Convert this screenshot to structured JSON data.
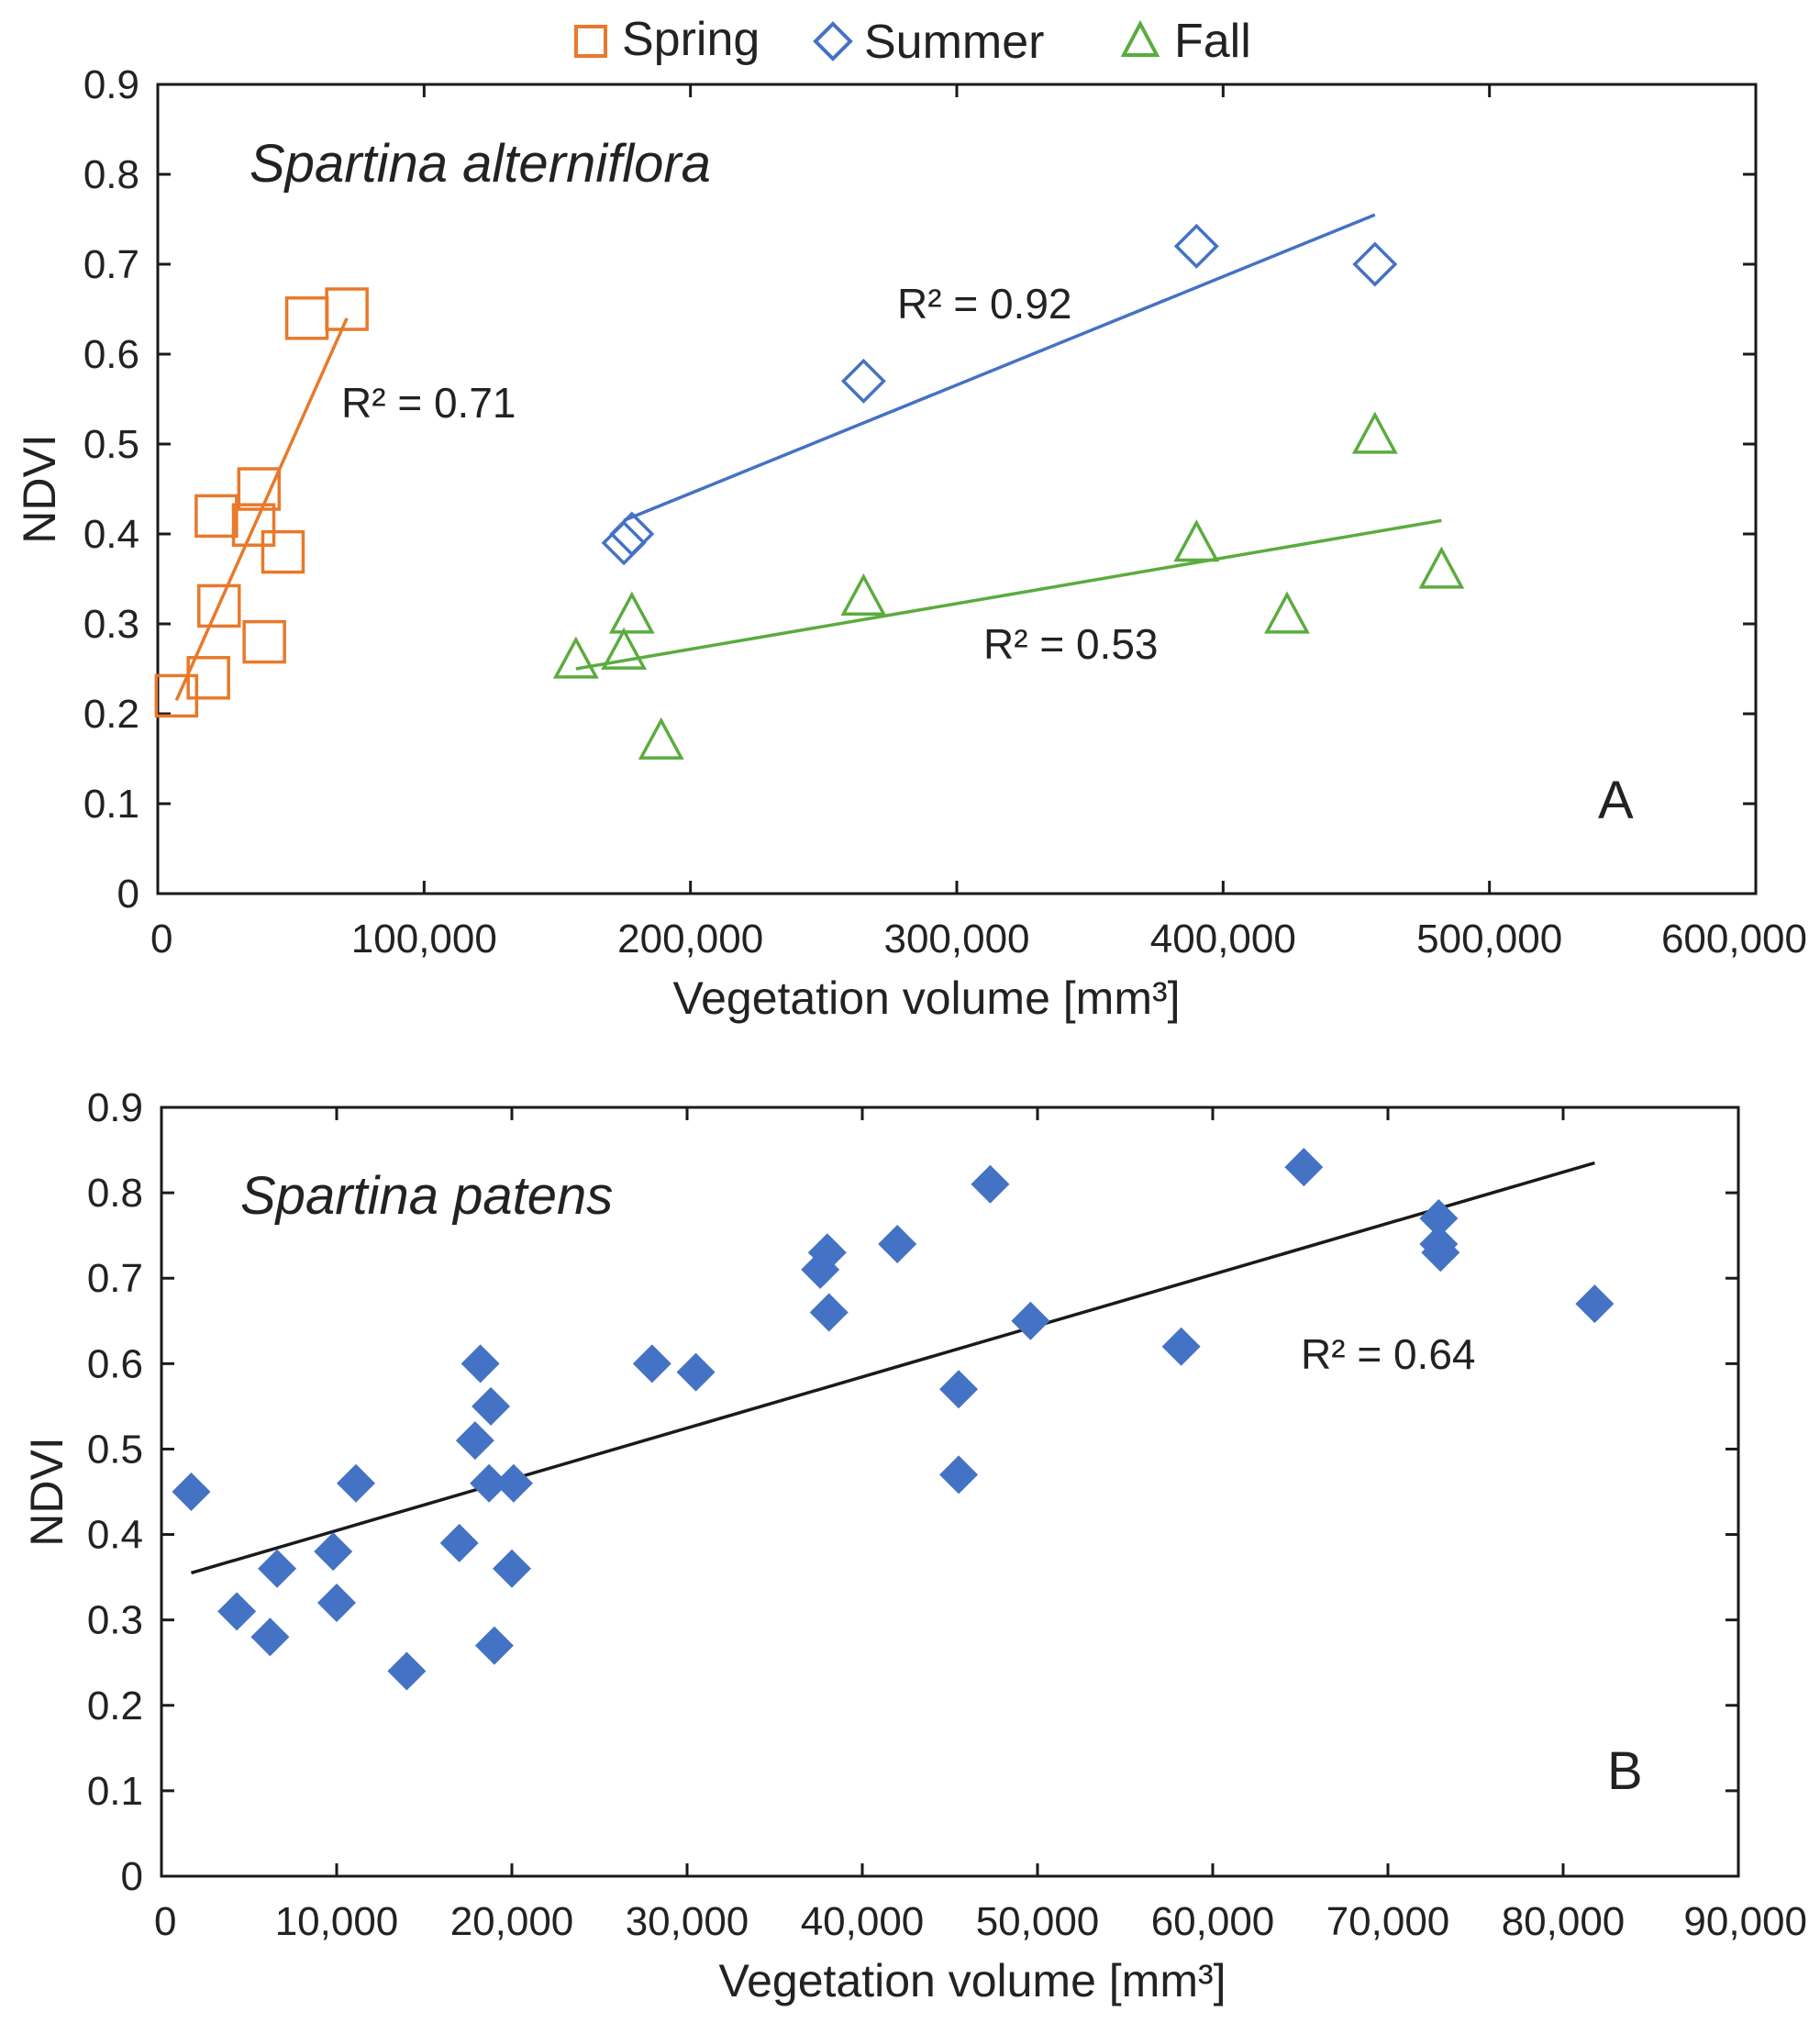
{
  "legend": {
    "items": [
      {
        "label": "Spring",
        "marker": "square",
        "color": "#e8792b"
      },
      {
        "label": "Summer",
        "marker": "diamond",
        "color": "#4472c4"
      },
      {
        "label": "Fall",
        "marker": "triangle",
        "color": "#5aac3e"
      }
    ]
  },
  "chart_data": [
    {
      "type": "scatter",
      "panel_label": "A",
      "title": "Spartina alterniflora",
      "xlabel": "Vegetation volume [mm³]",
      "ylabel": "NDVI",
      "xlim": [
        0,
        600000
      ],
      "ylim": [
        0,
        0.9
      ],
      "x_ticks": [
        0,
        100000,
        200000,
        300000,
        400000,
        500000,
        600000
      ],
      "x_tick_labels": [
        "0",
        "100,000",
        "200,000",
        "300,000",
        "400,000",
        "500,000",
        "600,000"
      ],
      "y_ticks": [
        0,
        0.1,
        0.2,
        0.3,
        0.4,
        0.5,
        0.6,
        0.7,
        0.8,
        0.9
      ],
      "y_tick_labels": [
        "0",
        "0.1",
        "0.2",
        "0.3",
        "0.4",
        "0.5",
        "0.6",
        "0.7",
        "0.8",
        "0.9"
      ],
      "legend": "top",
      "grid": false,
      "series": [
        {
          "name": "Spring",
          "marker": "square",
          "color": "#e8792b",
          "points": [
            [
              7000,
              0.22
            ],
            [
              19000,
              0.24
            ],
            [
              22000,
              0.42
            ],
            [
              23000,
              0.32
            ],
            [
              36000,
              0.41
            ],
            [
              38000,
              0.45
            ],
            [
              40000,
              0.28
            ],
            [
              47000,
              0.38
            ],
            [
              56000,
              0.64
            ],
            [
              71000,
              0.65
            ]
          ],
          "trendline": {
            "x": [
              7000,
              71000
            ],
            "y": [
              0.215,
              0.64
            ],
            "r2_label": "R² = 0.71"
          }
        },
        {
          "name": "Summer",
          "marker": "diamond",
          "color": "#4472c4",
          "points": [
            [
              175000,
              0.39
            ],
            [
              178000,
              0.4
            ],
            [
              265000,
              0.57
            ],
            [
              390000,
              0.72
            ],
            [
              457000,
              0.7
            ]
          ],
          "trendline": {
            "x": [
              175000,
              457000
            ],
            "y": [
              0.415,
              0.755
            ],
            "r2_label": "R² = 0.92"
          }
        },
        {
          "name": "Fall",
          "marker": "triangle",
          "color": "#5aac3e",
          "points": [
            [
              157000,
              0.26
            ],
            [
              175000,
              0.27
            ],
            [
              178000,
              0.31
            ],
            [
              189000,
              0.17
            ],
            [
              265000,
              0.33
            ],
            [
              390000,
              0.39
            ],
            [
              424000,
              0.31
            ],
            [
              457000,
              0.51
            ],
            [
              482000,
              0.36
            ]
          ],
          "trendline": {
            "x": [
              157000,
              482000
            ],
            "y": [
              0.25,
              0.415
            ],
            "r2_label": "R² = 0.53"
          }
        }
      ]
    },
    {
      "type": "scatter",
      "panel_label": "B",
      "title": "Spartina patens",
      "xlabel": "Vegetation volume [mm³]",
      "ylabel": "NDVI",
      "xlim": [
        0,
        90000
      ],
      "ylim": [
        0,
        0.9
      ],
      "x_ticks": [
        0,
        10000,
        20000,
        30000,
        40000,
        50000,
        60000,
        70000,
        80000,
        90000
      ],
      "x_tick_labels": [
        "0",
        "10,000",
        "20,000",
        "30,000",
        "40,000",
        "50,000",
        "60,000",
        "70,000",
        "80,000",
        "90,000"
      ],
      "y_ticks": [
        0,
        0.1,
        0.2,
        0.3,
        0.4,
        0.5,
        0.6,
        0.7,
        0.8,
        0.9
      ],
      "y_tick_labels": [
        "0",
        "0.1",
        "0.2",
        "0.3",
        "0.4",
        "0.5",
        "0.6",
        "0.7",
        "0.8",
        "0.9"
      ],
      "grid": false,
      "series": [
        {
          "name": "Spartina patens",
          "marker": "filled-diamond",
          "color": "#4472c4",
          "points": [
            [
              1700,
              0.45
            ],
            [
              4300,
              0.31
            ],
            [
              6200,
              0.28
            ],
            [
              6600,
              0.36
            ],
            [
              9800,
              0.38
            ],
            [
              10000,
              0.32
            ],
            [
              11100,
              0.46
            ],
            [
              14000,
              0.24
            ],
            [
              17000,
              0.39
            ],
            [
              17900,
              0.51
            ],
            [
              18200,
              0.6
            ],
            [
              18700,
              0.46
            ],
            [
              18800,
              0.55
            ],
            [
              19000,
              0.27
            ],
            [
              20000,
              0.36
            ],
            [
              20100,
              0.46
            ],
            [
              28000,
              0.6
            ],
            [
              30500,
              0.59
            ],
            [
              37600,
              0.71
            ],
            [
              38000,
              0.73
            ],
            [
              38100,
              0.66
            ],
            [
              42000,
              0.74
            ],
            [
              45500,
              0.57
            ],
            [
              45500,
              0.47
            ],
            [
              47300,
              0.81
            ],
            [
              49600,
              0.65
            ],
            [
              58200,
              0.62
            ],
            [
              65200,
              0.83
            ],
            [
              72900,
              0.77
            ],
            [
              72900,
              0.74
            ],
            [
              73000,
              0.73
            ],
            [
              81800,
              0.67
            ]
          ],
          "trendline": {
            "x": [
              1700,
              81800
            ],
            "y": [
              0.355,
              0.835
            ],
            "r2_label": "R² = 0.64",
            "color": "#1a1a1a"
          }
        }
      ]
    }
  ]
}
